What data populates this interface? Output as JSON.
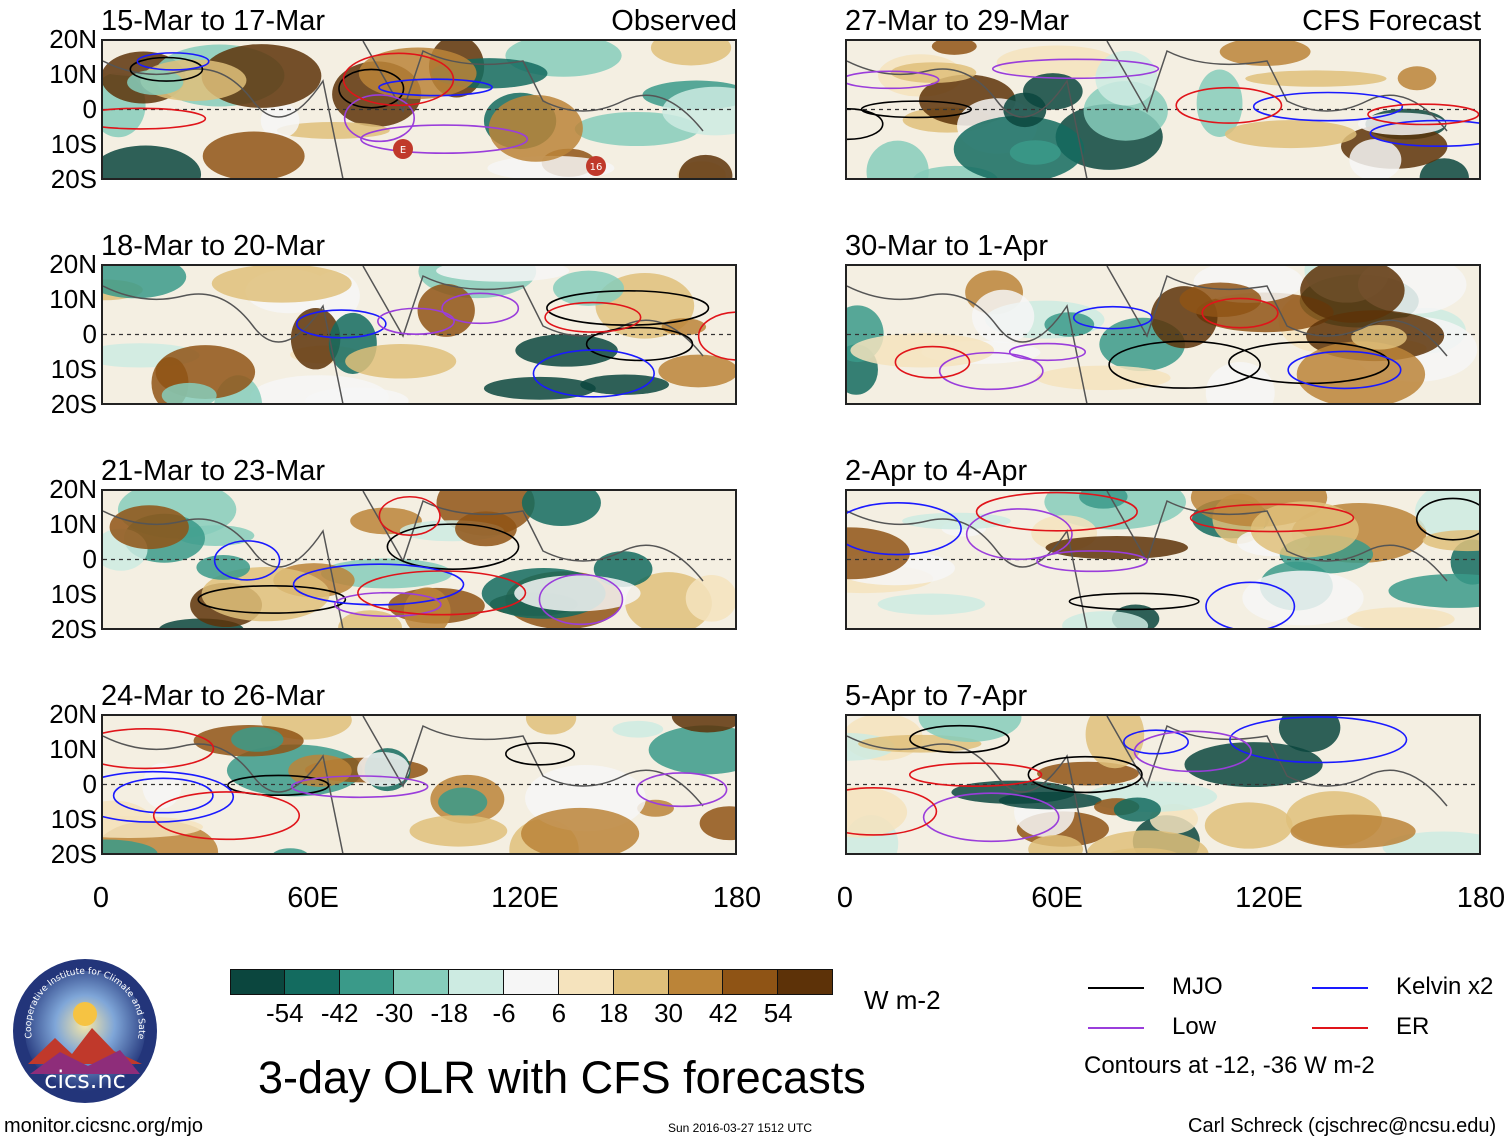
{
  "chart_data": {
    "type": "heatmap",
    "title": "3-day OLR with CFS forecasts",
    "variable": "OLR anomaly",
    "units": "W m-2",
    "colorbar": {
      "ticks": [
        "-54",
        "-42",
        "-30",
        "-18",
        "-6",
        "6",
        "18",
        "30",
        "42",
        "54"
      ],
      "colors": [
        "#0b463e",
        "#136b5f",
        "#3a9a89",
        "#86cdbb",
        "#cdebe2",
        "#f6f6f6",
        "#f5e3bd",
        "#dfbf7a",
        "#bb8438",
        "#8f5415",
        "#5d3208"
      ]
    },
    "latitude_ticks": [
      "20N",
      "10N",
      "0",
      "10S",
      "20S"
    ],
    "longitude_ticks": [
      "0",
      "60E",
      "120E",
      "180"
    ],
    "lat_range": [
      -20,
      20
    ],
    "lon_range": [
      0,
      180
    ],
    "panels": [
      {
        "column": "Observed",
        "period": "15-Mar to 17-Mar",
        "tag": "Observed",
        "markers": [
          "E",
          "16"
        ]
      },
      {
        "column": "Observed",
        "period": "18-Mar to 20-Mar",
        "tag": "",
        "markers": []
      },
      {
        "column": "Observed",
        "period": "21-Mar to 23-Mar",
        "tag": "",
        "markers": []
      },
      {
        "column": "Observed",
        "period": "24-Mar to 26-Mar",
        "tag": "",
        "markers": []
      },
      {
        "column": "CFS Forecast",
        "period": "27-Mar to 29-Mar",
        "tag": "CFS Forecast",
        "markers": []
      },
      {
        "column": "CFS Forecast",
        "period": "30-Mar to 1-Apr",
        "tag": "",
        "markers": []
      },
      {
        "column": "CFS Forecast",
        "period": "2-Apr to 4-Apr",
        "tag": "",
        "markers": []
      },
      {
        "column": "CFS Forecast",
        "period": "5-Apr to 7-Apr",
        "tag": "",
        "markers": []
      }
    ],
    "contour_legend": [
      {
        "name": "MJO",
        "color": "#000000"
      },
      {
        "name": "Kelvin x2",
        "color": "#1a1aff"
      },
      {
        "name": "Low",
        "color": "#9a3ddb"
      },
      {
        "name": "ER",
        "color": "#e0141a"
      }
    ],
    "contour_note": "Contours at -12, -36 W m-2"
  },
  "footer": {
    "logo_text": "cics.nc",
    "logo_ring_text": "Cooperative Institute for Climate and Satellites",
    "website": "monitor.cicsnc.org/mjo",
    "timestamp": "Sun 2016-03-27 1512 UTC",
    "author": "Carl Schreck (cjschrec@ncsu.edu)"
  }
}
